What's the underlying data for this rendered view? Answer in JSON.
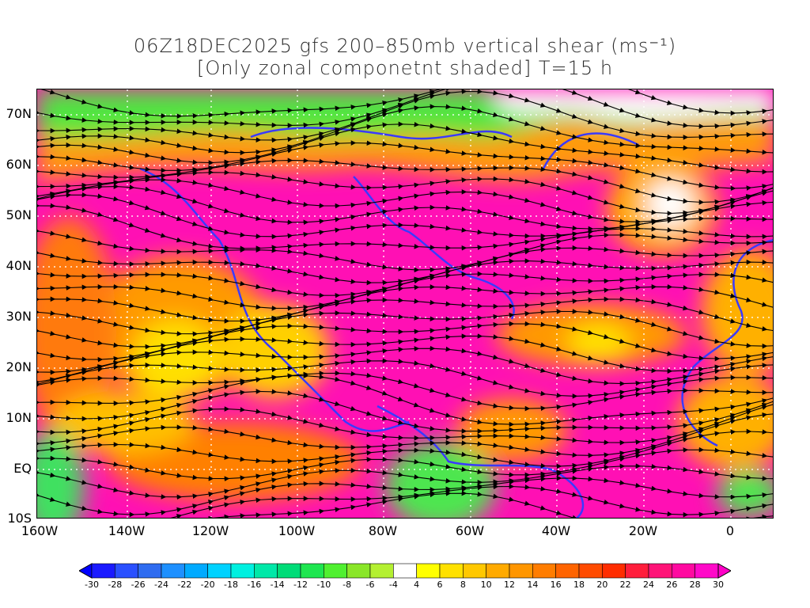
{
  "title": {
    "line1": "06Z18DEC2025 gfs 200–850mb vertical shear (ms⁻¹)",
    "line2": "[Only zonal componetnt shaded] T=15 h"
  },
  "axes": {
    "lat_labels": [
      "70N",
      "60N",
      "50N",
      "40N",
      "30N",
      "20N",
      "10N",
      "EQ",
      "10S"
    ],
    "lat_values": [
      70,
      60,
      50,
      40,
      30,
      20,
      10,
      0,
      -10
    ],
    "lon_labels": [
      "160W",
      "140W",
      "120W",
      "100W",
      "80W",
      "60W",
      "40W",
      "20W",
      "0"
    ],
    "lon_values": [
      -160,
      -140,
      -120,
      -100,
      -80,
      -60,
      -40,
      -20,
      0
    ],
    "lat_range": [
      -10,
      75
    ],
    "lon_range": [
      -160,
      10
    ]
  },
  "colorbar": {
    "labels": [
      "-30",
      "-28",
      "-26",
      "-24",
      "-22",
      "-20",
      "-18",
      "-16",
      "-14",
      "-12",
      "-10",
      "-8",
      "-6",
      "-4",
      "4",
      "6",
      "8",
      "10",
      "12",
      "14",
      "16",
      "18",
      "20",
      "22",
      "24",
      "26",
      "28",
      "30"
    ],
    "colors": [
      "#1a1aff",
      "#2a50ff",
      "#2f6cf0",
      "#1e90ff",
      "#00aaff",
      "#00d2ff",
      "#00f0e0",
      "#00e8a8",
      "#00dc78",
      "#1ee650",
      "#50f030",
      "#8ae628",
      "#b4f032",
      "#ffffff",
      "#ffff00",
      "#ffe100",
      "#ffc800",
      "#ffaa00",
      "#ff9600",
      "#ff7d00",
      "#ff6400",
      "#ff4b00",
      "#ff2d00",
      "#ff1e3c",
      "#ff1478",
      "#ff0aa0",
      "#ff0ac8"
    ],
    "under_color": "#0000ff",
    "over_color": "#ff00c8"
  },
  "legend_colors": {
    "coastline": "#3a3aff",
    "contour": "#9000c0",
    "streamline": "#000000",
    "grid": "#ffffff"
  }
}
